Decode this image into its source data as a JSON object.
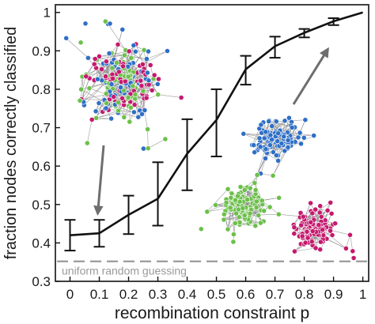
{
  "chart_data": {
    "type": "line",
    "xlabel": "recombination constraint p",
    "ylabel": "fraction nodes correctly classified",
    "xlim": [
      -0.05,
      1.02
    ],
    "ylim": [
      0.3,
      1.02
    ],
    "x_ticks": [
      "0",
      "0.1",
      "0.2",
      "0.3",
      "0.4",
      "0.5",
      "0.6",
      "0.7",
      "0.8",
      "0.9",
      "1"
    ],
    "y_ticks": [
      "0.3",
      "0.4",
      "0.5",
      "0.6",
      "0.7",
      "0.8",
      "0.9",
      "1"
    ],
    "series": [
      {
        "x": [
          0,
          0.1,
          0.2,
          0.3,
          0.4,
          0.5,
          0.6,
          0.7,
          0.8,
          0.9,
          1.0
        ],
        "y": [
          0.42,
          0.425,
          0.473,
          0.515,
          0.632,
          0.72,
          0.852,
          0.912,
          0.947,
          0.977,
          1.0
        ],
        "err_low": [
          0.04,
          0.035,
          0.05,
          0.07,
          0.095,
          0.095,
          0.04,
          0.03,
          0.012,
          0.01,
          0
        ],
        "err_high": [
          0.04,
          0.035,
          0.05,
          0.095,
          0.09,
          0.08,
          0.035,
          0.025,
          0.01,
          0.008,
          0
        ],
        "color": "#111111"
      }
    ],
    "reference_line": {
      "label": "uniform random guessing",
      "y": 0.352,
      "color": "#999999"
    },
    "community_colors": [
      "#2f6fc6",
      "#c41a6e",
      "#6cc04a"
    ],
    "insets": [
      {
        "kind": "network",
        "mixing": "mixed",
        "arrow_to_x": 0.1,
        "arrow_to_y": 0.48
      },
      {
        "kind": "network",
        "mixing": "separated",
        "arrow_to_x": 0.9,
        "arrow_to_y": 0.965
      }
    ],
    "grid": false
  }
}
